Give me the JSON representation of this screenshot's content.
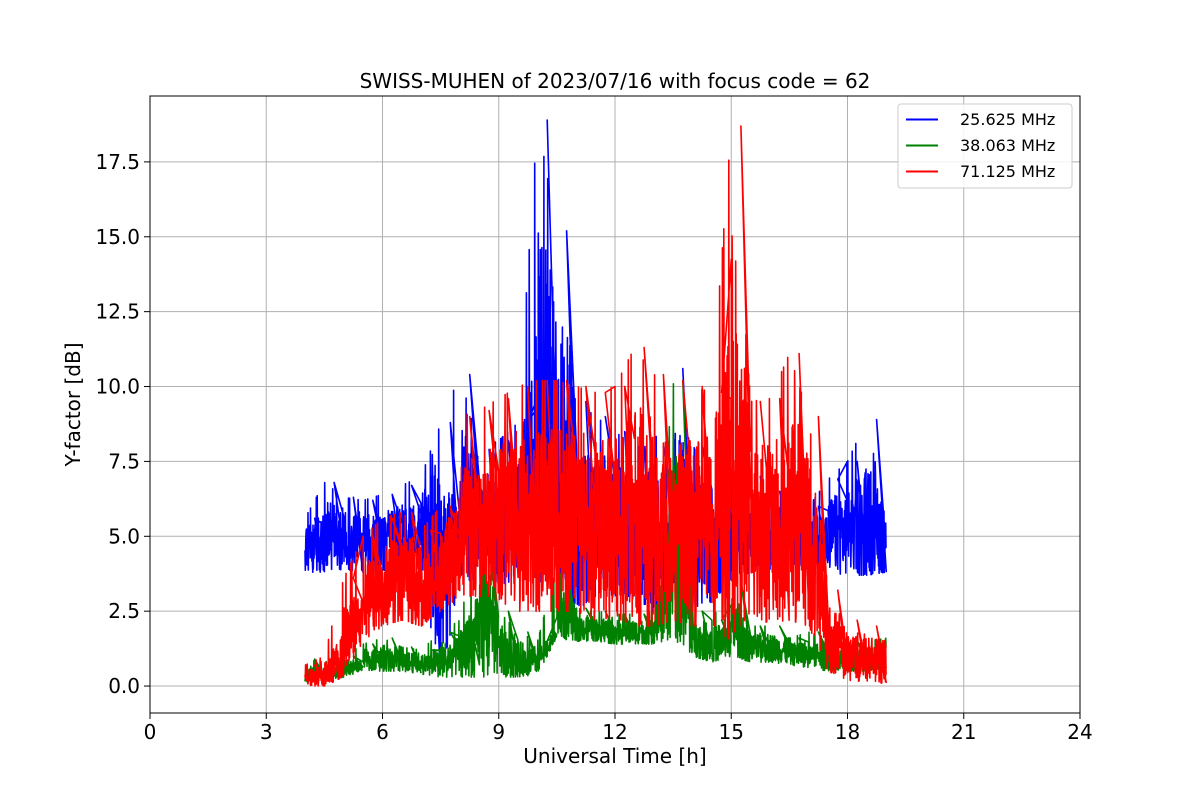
{
  "chart_data": {
    "type": "line",
    "title": "SWISS-MUHEN of 2023/07/16 with focus code = 62",
    "xlabel": "Universal Time [h]",
    "ylabel": "Y-factor [dB]",
    "xlim": [
      0,
      24
    ],
    "ylim": [
      -0.9,
      19.7
    ],
    "xticks": [
      0,
      3,
      6,
      9,
      12,
      15,
      18,
      21,
      24
    ],
    "xtick_labels": [
      "0",
      "3",
      "6",
      "9",
      "12",
      "15",
      "18",
      "21",
      "24"
    ],
    "yticks": [
      0.0,
      2.5,
      5.0,
      7.5,
      10.0,
      12.5,
      15.0,
      17.5
    ],
    "ytick_labels": [
      "0.0",
      "2.5",
      "5.0",
      "7.5",
      "10.0",
      "12.5",
      "15.0",
      "17.5"
    ],
    "grid": true,
    "legend_position": "top-right",
    "series": [
      {
        "name": "25.625 MHz",
        "color": "#0000ff",
        "x": [
          4.0,
          4.5,
          5.0,
          5.5,
          6.0,
          6.5,
          7.0,
          7.5,
          8.0,
          8.5,
          9.0,
          9.5,
          10.0,
          10.5,
          11.0,
          11.5,
          12.0,
          12.5,
          13.0,
          13.5,
          14.0,
          14.5,
          15.0,
          15.5,
          16.0,
          16.5,
          17.0,
          17.5,
          18.0,
          18.5,
          19.0
        ],
        "ymin": [
          3.8,
          3.8,
          3.9,
          3.8,
          3.8,
          3.8,
          3.9,
          0.0,
          3.5,
          3.5,
          3.4,
          3.5,
          3.5,
          3.4,
          2.5,
          3.0,
          3.0,
          3.0,
          2.2,
          3.0,
          2.6,
          2.8,
          3.5,
          3.8,
          3.9,
          4.0,
          3.9,
          3.8,
          3.7,
          3.7,
          3.8
        ],
        "ymax": [
          5.6,
          6.8,
          6.3,
          6.2,
          6.4,
          6.7,
          7.0,
          8.8,
          10.4,
          7.9,
          8.2,
          8.8,
          18.9,
          15.2,
          9.5,
          9.0,
          8.5,
          8.0,
          8.0,
          10.6,
          8.0,
          7.5,
          7.3,
          7.0,
          6.5,
          6.3,
          6.0,
          6.9,
          7.5,
          8.9,
          5.6
        ]
      },
      {
        "name": "38.063 MHz",
        "color": "#008000",
        "x": [
          4.0,
          4.5,
          5.0,
          5.5,
          6.0,
          6.5,
          7.0,
          7.5,
          8.0,
          8.5,
          9.0,
          9.5,
          10.0,
          10.5,
          11.0,
          11.5,
          12.0,
          12.5,
          13.0,
          13.5,
          14.0,
          14.5,
          15.0,
          15.5,
          16.0,
          16.5,
          17.0,
          17.5,
          18.0,
          18.5,
          19.0
        ],
        "ymin": [
          0.1,
          0.2,
          0.3,
          0.5,
          0.5,
          0.5,
          0.4,
          0.3,
          0.3,
          0.3,
          0.3,
          0.3,
          0.4,
          1.6,
          1.5,
          1.5,
          1.4,
          1.4,
          1.4,
          1.6,
          1.0,
          0.8,
          1.0,
          0.8,
          0.8,
          0.7,
          0.6,
          0.5,
          0.5,
          0.5,
          0.6
        ],
        "ymax": [
          0.9,
          0.8,
          1.0,
          1.4,
          1.6,
          1.3,
          1.2,
          1.8,
          2.2,
          5.2,
          2.5,
          1.8,
          1.5,
          4.0,
          2.6,
          2.5,
          2.4,
          2.4,
          2.5,
          10.2,
          2.5,
          2.2,
          3.5,
          2.0,
          2.0,
          1.6,
          1.8,
          1.6,
          1.5,
          1.5,
          1.6
        ]
      },
      {
        "name": "71.125 MHz",
        "color": "#ff0000",
        "x": [
          4.0,
          4.5,
          5.0,
          5.5,
          6.0,
          6.5,
          7.0,
          7.5,
          8.0,
          8.5,
          9.0,
          9.5,
          10.0,
          10.5,
          11.0,
          11.5,
          12.0,
          12.5,
          13.0,
          13.5,
          14.0,
          14.5,
          15.0,
          15.5,
          16.0,
          16.5,
          17.0,
          17.5,
          18.0,
          18.5,
          19.0
        ],
        "ymin": [
          0.0,
          0.0,
          0.3,
          1.5,
          2.0,
          2.2,
          2.0,
          2.5,
          3.0,
          3.0,
          2.8,
          2.5,
          2.5,
          2.5,
          2.5,
          2.2,
          2.3,
          2.0,
          2.0,
          2.2,
          2.0,
          2.0,
          1.5,
          2.5,
          2.0,
          2.2,
          2.0,
          0.5,
          0.2,
          0.1,
          0.1
        ],
        "ymax": [
          0.7,
          1.0,
          3.6,
          5.0,
          5.6,
          5.8,
          5.2,
          6.0,
          9.0,
          9.2,
          9.6,
          10.0,
          10.2,
          10.2,
          10.0,
          9.8,
          10.0,
          11.3,
          10.4,
          10.2,
          10.0,
          9.8,
          18.7,
          9.5,
          9.6,
          11.1,
          9.0,
          3.2,
          2.2,
          2.0,
          1.8
        ]
      }
    ]
  }
}
